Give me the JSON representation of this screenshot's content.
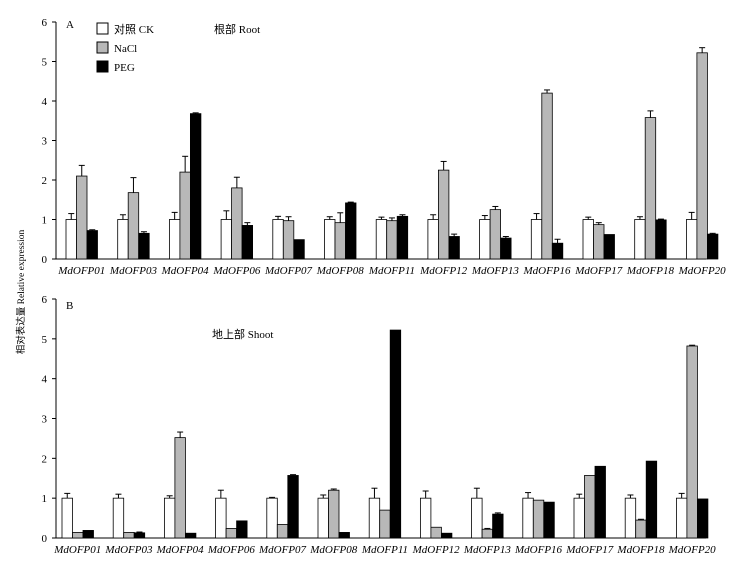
{
  "y_axis_label": "相对表达量 Relative expression",
  "legend": [
    {
      "label": "对照 CK",
      "color": "#ffffff"
    },
    {
      "label": "NaCl",
      "color": "#b8b8b8"
    },
    {
      "label": "PEG",
      "color": "#000000"
    }
  ],
  "chart_data": [
    {
      "type": "bar",
      "panel": "A",
      "title": "根部 Root",
      "ylim": [
        0,
        6
      ],
      "yticks": [
        0,
        1,
        2,
        3,
        4,
        5,
        6
      ],
      "grid": false,
      "legend_position": "top-left",
      "categories": [
        "MdOFP01",
        "MdOFP03",
        "MdOFP04",
        "MdOFP06",
        "MdOFP07",
        "MdOFP08",
        "MdOFP11",
        "MdOFP12",
        "MdOFP13",
        "MdOFP16",
        "MdOFP17",
        "MdOFP18",
        "MdOFP20"
      ],
      "series": [
        {
          "name": "对照 CK",
          "values": [
            1.0,
            1.0,
            1.0,
            1.0,
            1.0,
            1.0,
            1.0,
            1.0,
            1.0,
            1.0,
            1.0,
            1.0,
            1.0
          ],
          "errors": [
            0.15,
            0.12,
            0.18,
            0.22,
            0.08,
            0.07,
            0.06,
            0.12,
            0.1,
            0.15,
            0.06,
            0.07,
            0.18
          ]
        },
        {
          "name": "NaCl",
          "values": [
            2.1,
            1.68,
            2.2,
            1.8,
            0.97,
            0.92,
            0.97,
            2.25,
            1.25,
            4.2,
            0.87,
            3.58,
            5.22
          ],
          "errors": [
            0.27,
            0.38,
            0.4,
            0.27,
            0.1,
            0.25,
            0.07,
            0.22,
            0.08,
            0.08,
            0.05,
            0.17,
            0.13
          ]
        },
        {
          "name": "PEG",
          "values": [
            0.72,
            0.65,
            3.68,
            0.85,
            0.49,
            1.42,
            1.08,
            0.57,
            0.53,
            0.4,
            0.62,
            0.99,
            0.63
          ],
          "errors": [
            0.02,
            0.04,
            0.02,
            0.07,
            0.0,
            0.02,
            0.04,
            0.06,
            0.04,
            0.1,
            0.0,
            0.02,
            0.02
          ]
        }
      ]
    },
    {
      "type": "bar",
      "panel": "B",
      "title": "地上部 Shoot",
      "ylim": [
        0,
        6
      ],
      "yticks": [
        0,
        1,
        2,
        3,
        4,
        5,
        6
      ],
      "grid": false,
      "categories": [
        "MdOFP01",
        "MdOFP03",
        "MdOFP04",
        "MdOFP06",
        "MdOFP07",
        "MdOFP08",
        "MdOFP11",
        "MdOFP12",
        "MdOFP13",
        "MdOFP16",
        "MdOFP17",
        "MdOFP18",
        "MdOFP20"
      ],
      "series": [
        {
          "name": "对照 CK",
          "values": [
            1.0,
            1.0,
            1.0,
            1.0,
            1.0,
            1.0,
            1.0,
            1.0,
            1.0,
            1.0,
            1.0,
            1.0,
            1.0
          ],
          "errors": [
            0.12,
            0.1,
            0.06,
            0.2,
            0.02,
            0.08,
            0.25,
            0.18,
            0.25,
            0.14,
            0.1,
            0.08,
            0.12
          ]
        },
        {
          "name": "NaCl",
          "values": [
            0.14,
            0.14,
            2.52,
            0.24,
            0.34,
            1.2,
            0.7,
            0.27,
            0.22,
            0.95,
            1.57,
            0.45,
            4.82
          ],
          "errors": [
            0.0,
            0.0,
            0.14,
            0.0,
            0.0,
            0.03,
            0.0,
            0.0,
            0.02,
            0.0,
            0.0,
            0.02,
            0.02
          ]
        },
        {
          "name": "PEG",
          "values": [
            0.19,
            0.13,
            0.12,
            0.43,
            1.57,
            0.14,
            5.22,
            0.12,
            0.6,
            0.9,
            1.8,
            1.93,
            0.98
          ],
          "errors": [
            0.0,
            0.02,
            0.0,
            0.0,
            0.02,
            0.0,
            0.0,
            0.0,
            0.03,
            0.0,
            0.0,
            0.0,
            0.0
          ]
        }
      ]
    }
  ]
}
